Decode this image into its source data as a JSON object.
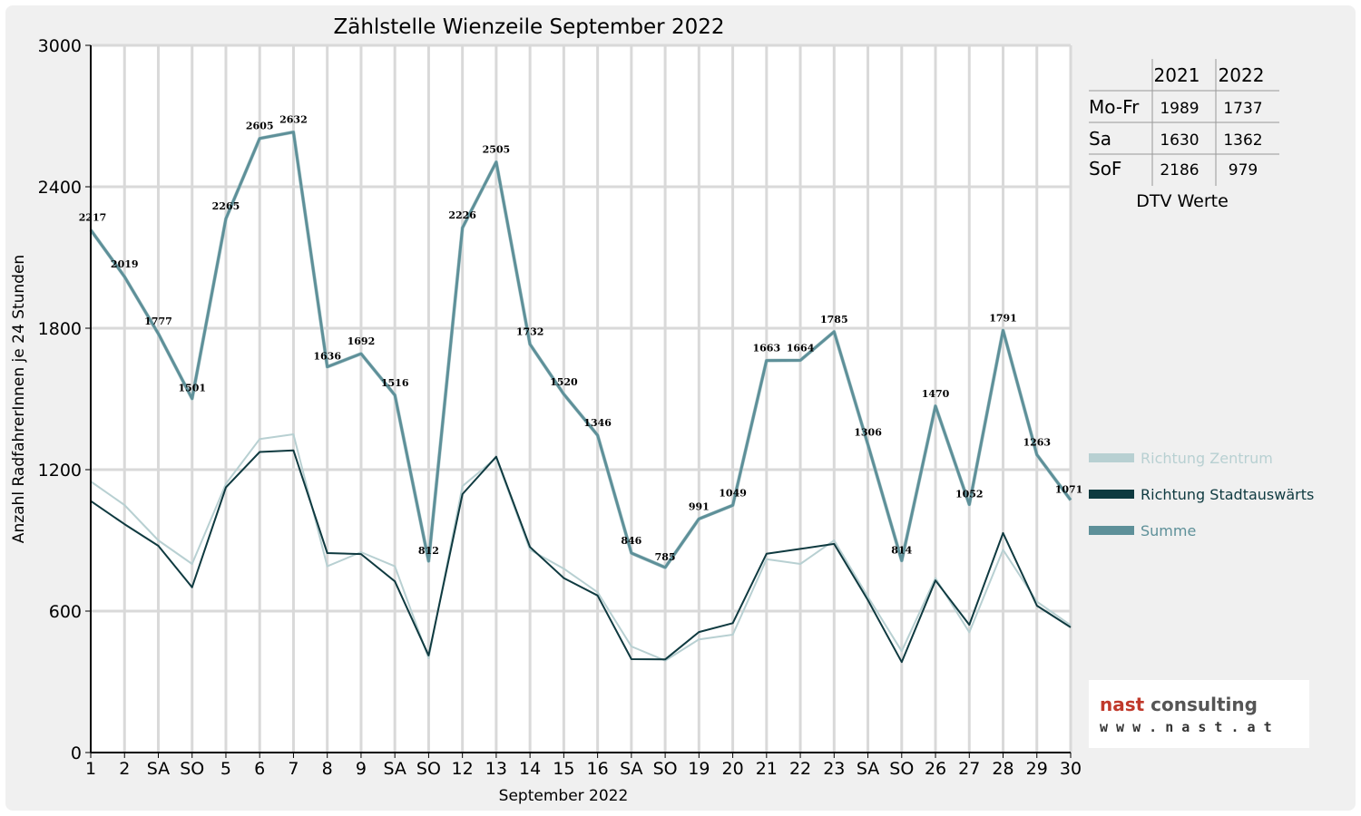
{
  "chart_data": {
    "type": "line",
    "title": "Zählstelle Wienzeile September 2022",
    "xlabel": "September 2022",
    "ylabel": "Anzahl RadfahrerInnen je 24 Stunden",
    "ylim": [
      0,
      3000
    ],
    "yticks": [
      0,
      600,
      1200,
      1800,
      2400,
      3000
    ],
    "grid": true,
    "legend_position": "right",
    "categories": [
      "1",
      "2",
      "SA",
      "SO",
      "5",
      "6",
      "7",
      "8",
      "9",
      "SA",
      "SO",
      "12",
      "13",
      "14",
      "15",
      "16",
      "SA",
      "SO",
      "19",
      "20",
      "21",
      "22",
      "23",
      "SA",
      "SO",
      "26",
      "27",
      "28",
      "29",
      "30"
    ],
    "weekend_color": "#ff0000",
    "weekend_indices": [
      3,
      10,
      17,
      24
    ],
    "series": [
      {
        "name": "Richtung Zentrum",
        "color": "#b8d0d2",
        "values": [
          1150,
          1050,
          900,
          800,
          1140,
          1330,
          1350,
          790,
          850,
          790,
          400,
          1130,
          1250,
          860,
          780,
          680,
          450,
          390,
          480,
          500,
          820,
          800,
          900,
          660,
          430,
          740,
          510,
          860,
          640,
          540
        ]
      },
      {
        "name": "Richtung Stadtauswärts",
        "color": "#0f3a40",
        "values": [
          1067,
          969,
          877,
          701,
          1125,
          1275,
          1282,
          846,
          842,
          726,
          412,
          1096,
          1255,
          872,
          740,
          666,
          396,
          395,
          511,
          549,
          843,
          864,
          885,
          646,
          384,
          730,
          542,
          931,
          623,
          531
        ]
      },
      {
        "name": "Summe",
        "color": "#5e9099",
        "values": [
          2217,
          2019,
          1777,
          1501,
          2265,
          2605,
          2632,
          1636,
          1692,
          1516,
          812,
          2226,
          2505,
          1732,
          1520,
          1346,
          846,
          785,
          991,
          1049,
          1663,
          1664,
          1785,
          1306,
          814,
          1470,
          1052,
          1791,
          1263,
          1071
        ]
      }
    ]
  },
  "dtv_table": {
    "years": [
      "2021",
      "2022"
    ],
    "rows": [
      {
        "label": "Mo-Fr",
        "v2021": "1989",
        "v2022": "1737"
      },
      {
        "label": "Sa",
        "v2021": "1630",
        "v2022": "1362"
      },
      {
        "label": "SoF",
        "v2021": "2186",
        "v2022": "979"
      }
    ],
    "caption": "DTV Werte"
  },
  "logo": {
    "brand_a": "nast",
    "brand_b": " consulting",
    "url": "w w w . n a s t . a t",
    "brand_a_color": "#c0392b",
    "brand_b_color": "#555555"
  }
}
